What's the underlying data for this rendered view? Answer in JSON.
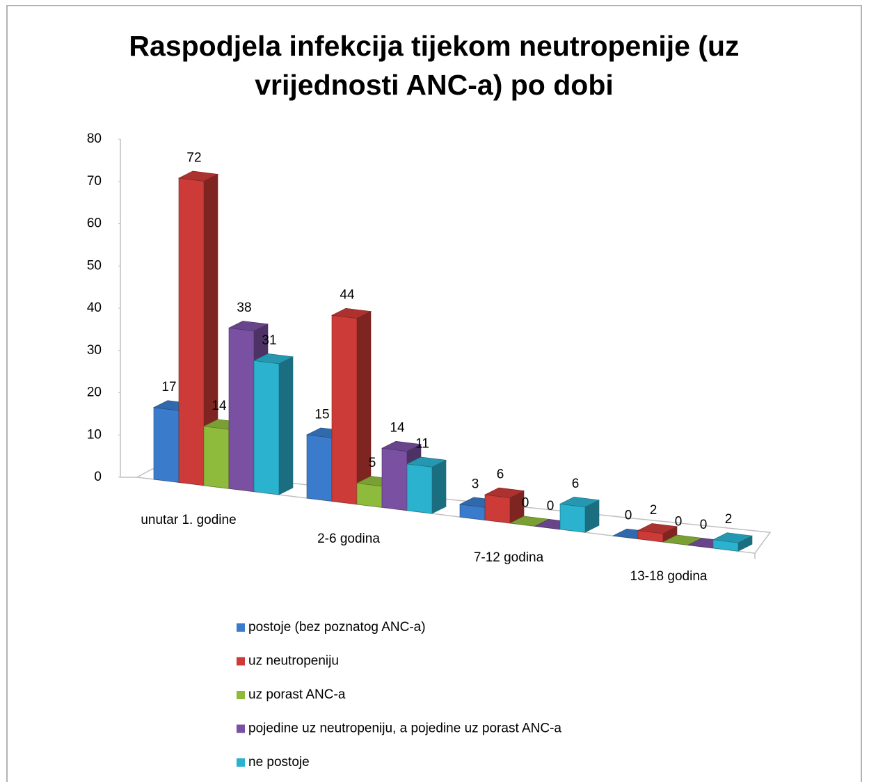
{
  "chart_data": {
    "type": "bar3d",
    "title": "Raspodjela infekcija tijekom neutropenije (uz vrijednosti ANC-a) po dobi",
    "categories": [
      "unutar 1. godine",
      "2-6 godina",
      "7-12 godina",
      "13-18 godina"
    ],
    "series": [
      {
        "name": "postoje (bez poznatog ANC-a)",
        "color": "#3a7ccb",
        "values": [
          17,
          15,
          3,
          0
        ]
      },
      {
        "name": "uz neutropeniju",
        "color": "#cc3b37",
        "values": [
          72,
          44,
          6,
          2
        ]
      },
      {
        "name": "uz porast ANC-a",
        "color": "#8fbb3c",
        "values": [
          14,
          5,
          0,
          0
        ]
      },
      {
        "name": "pojedine uz neutropeniju, a pojedine uz porast ANC-a",
        "color": "#7a50a3",
        "values": [
          38,
          14,
          0,
          0
        ]
      },
      {
        "name": "ne postoje",
        "color": "#2bb2cf",
        "values": [
          31,
          11,
          6,
          2
        ]
      }
    ],
    "ylim": [
      0,
      80
    ],
    "yticks": [
      0,
      10,
      20,
      30,
      40,
      50,
      60,
      70,
      80
    ],
    "grid": false,
    "legend": "bottom"
  }
}
